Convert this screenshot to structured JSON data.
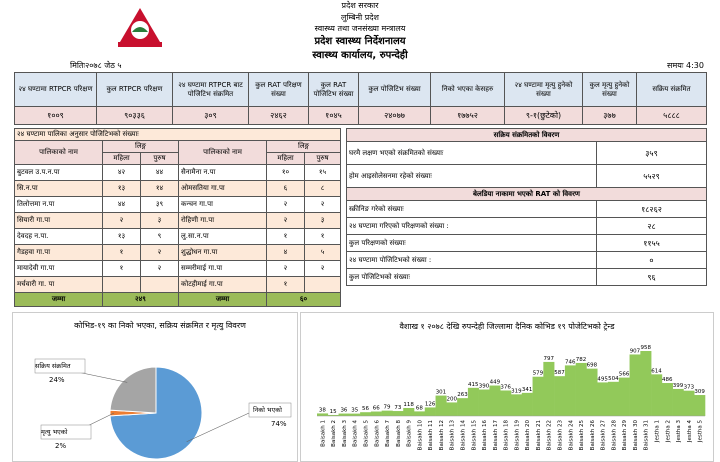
{
  "header": {
    "lines": [
      "प्रदेश सरकार",
      "लुम्बिनी प्रदेश",
      "स्वास्थ्य तथा जनसंख्या मन्त्रालय",
      "प्रदेश स्वास्थ्य निर्देशनालय",
      "स्वास्थ्य कार्यालय, रुपन्देही"
    ],
    "date": "मितिः२०७८ जेठ ५",
    "time": "समयः 4:30"
  },
  "summary": {
    "headers": [
      "२४ घण्टामा RTPCR परिक्षण",
      "कुल RTPCR परिक्षण",
      "२४ घण्टामा RTPCR बाट पोजिटिभ संक्रमित",
      "कुल RAT परिक्षण संख्या",
      "कुल RAT पोजिटिभ संख्या",
      "कुल पोजिटिभ संख्या",
      "निको भएका केसहरु",
      "२४ घण्टामा मृत्यु हुनेको संख्या",
      "कुल मृत्यु हुनेको संख्या",
      "सक्रिय संक्रमित"
    ],
    "values": [
      "१००९",
      "९०३३६",
      "३०९",
      "२४६२",
      "१०४५",
      "२४०७७",
      "१७७५२",
      "९-१(छुटेको)",
      "३७७",
      "५८८८"
    ]
  },
  "palika": {
    "title": "२४ घण्टामा पालिका अनुसार पोजिटिभको संख्याः",
    "name_header": "पालिकाको नाम",
    "gender_header": "लिङ्ग",
    "female": "महिला",
    "male": "पुरुष",
    "rows": [
      [
        "बुटवल उ.प.न.पा",
        "४२",
        "४४",
        "सैनामैना न.पा",
        "१०",
        "१५"
      ],
      [
        "सि.न.पा",
        "१३",
        "१४",
        "ओमसतिया गा.पा",
        "६",
        "८"
      ],
      [
        "तिलोत्तमा न.पा",
        "४४",
        "३९",
        "कन्चन गा.पा",
        "२",
        "२"
      ],
      [
        "सियारी गा.पा",
        "२",
        "३",
        "रोहिणी गा.पा",
        "२",
        "३"
      ],
      [
        "देवदह न.पा.",
        "१३",
        "९",
        "लु.सा.न.पा",
        "१",
        "१"
      ],
      [
        "गैडहवा गा.पा",
        "१",
        "२",
        "शुद्धोधन गा.पा",
        "४",
        "५"
      ],
      [
        "मायादेवी गा.पा",
        "१",
        "२",
        "सम्मरीमाई गा.पा",
        "२",
        "२"
      ],
      [
        "मर्चवारी गा. पा",
        null,
        null,
        "कोटहीमाई गा.पा",
        "१",
        null
      ]
    ],
    "total_label": "जम्मा",
    "total_left": "२४९",
    "total_right": "६०"
  },
  "active": {
    "title": "सक्रिय संक्रमितको विवरण",
    "rows": [
      [
        "घरमै लक्षण भएको संक्रमितको संख्याः",
        "३५९"
      ],
      [
        "होम आइसोलेसनमा रहेको संख्याः",
        "५५२९"
      ]
    ]
  },
  "border": {
    "title": "बेलडिया नाकामा भएको RAT को विवरण",
    "rows": [
      [
        "स्क्रीनिङ गरेको संख्याः",
        "१८२६२"
      ],
      [
        "२४ घण्टामा गरिएको परिक्षणको संख्या :",
        "२८"
      ],
      [
        "कुल परिक्षणको संख्याः",
        "११५५"
      ],
      [
        "२४ घण्टामा पोजिटिभको संख्या :",
        "०"
      ],
      [
        "कुल पोजिटिभको संख्याः",
        "९६"
      ]
    ]
  },
  "pie": {
    "type": "pie",
    "title": "कोभिड-१९ का निको भएका, सक्रिय संक्रमित र मृत्यु विवरण",
    "labels": [
      "निको भएको",
      "मृत्यु भएको",
      "सक्रिय संक्रमित"
    ],
    "values": [
      74,
      2,
      24
    ],
    "value_labels": [
      "74%",
      "2%",
      "24%"
    ],
    "colors": [
      "#5b9bd5",
      "#ed7d31",
      "#a5a5a5"
    ]
  },
  "trend": {
    "type": "bar",
    "title": "वैशाख १ २०७८ देखि रुपन्देही जिल्लामा दैनिक कोभिड १९ पोजेटिभको ट्रेन्ड",
    "color": "#92c95a",
    "categories": [
      "Baisakh 1",
      "Baisakh 2",
      "Baisakh 3",
      "Baisakh 4",
      "Baisakh 5",
      "Baisakh 6",
      "Baisakh 7",
      "Baisakh 8",
      "Baisakh 9",
      "Baisakh 10",
      "Baisakh 11",
      "Baisakh 12",
      "Baisakh 13",
      "Baisakh 14",
      "Baisakh 15",
      "Baisakh 16",
      "Baisakh 17",
      "Baisakh 18",
      "Baisakh 19",
      "Baisakh 20",
      "Baisakh 21",
      "Baisakh 22",
      "Baisakh 23",
      "Baisakh 24",
      "Baisakh 25",
      "Baisakh 26",
      "Baisakh 27",
      "Baisakh 28",
      "Baisakh 29",
      "Baisakh 30",
      "Baisakh 31",
      "Jestha 1",
      "Jestha 2",
      "Jestha 3",
      "Jestha 4",
      "Jestha 5"
    ],
    "values": [
      38,
      15,
      36,
      35,
      56,
      66,
      79,
      73,
      118,
      68,
      126,
      301,
      200,
      263,
      415,
      390,
      449,
      376,
      319,
      341,
      579,
      797,
      587,
      746,
      782,
      698,
      495,
      504,
      566,
      907,
      958,
      614,
      486,
      399,
      373,
      309
    ]
  }
}
